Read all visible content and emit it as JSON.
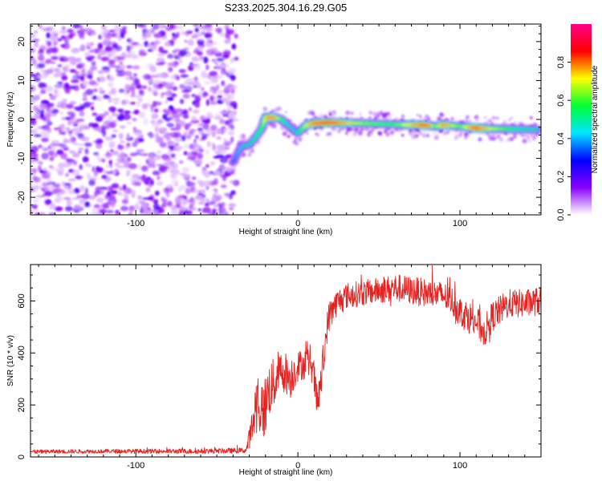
{
  "title": "S233.2025.304.16.29.G05",
  "chart_data": [
    {
      "type": "heatmap",
      "panel": "spectrogram",
      "xlabel": "Height of straight line (km)",
      "ylabel": "Frequency (Hz)",
      "xlim": [
        -165,
        150
      ],
      "ylim": [
        -24.5,
        24.5
      ],
      "xticks": [
        -100,
        0,
        100
      ],
      "xtick_labels": [
        "-100",
        "0",
        "100"
      ],
      "yticks": [
        -20,
        -10,
        0,
        10,
        20
      ],
      "ytick_labels": [
        "-20",
        "-10",
        "0",
        "10",
        "20"
      ],
      "noise_region_x": [
        -165,
        -38
      ],
      "signal_track": {
        "x": [
          -40,
          -35,
          -30,
          -25,
          -22,
          -20,
          -17,
          -14,
          -10,
          -6,
          -2,
          0,
          5,
          10,
          20,
          40,
          60,
          80,
          85,
          90,
          100,
          110,
          120,
          135,
          148
        ],
        "freq": [
          -11,
          -7,
          -6.5,
          -4,
          -2,
          0.5,
          0.5,
          0.5,
          0,
          -1.5,
          -3,
          -3.5,
          -1.5,
          -1,
          -0.8,
          -1,
          -1.3,
          -1.5,
          -1.8,
          -1.4,
          -1.8,
          -2.2,
          -2.4,
          -2.5,
          -2.6
        ],
        "amplitude": [
          0.35,
          0.45,
          0.5,
          0.55,
          0.6,
          0.75,
          0.85,
          0.8,
          0.6,
          0.5,
          0.45,
          0.5,
          0.7,
          0.85,
          0.9,
          0.65,
          0.6,
          0.9,
          0.6,
          0.85,
          0.6,
          0.9,
          0.7,
          0.55,
          0.5
        ]
      },
      "colorbar": {
        "label": "Normalized spectral amplitude",
        "range": [
          0,
          1
        ],
        "ticks": [
          0.0,
          0.2,
          0.4,
          0.6,
          0.8
        ],
        "tick_labels": [
          "0.0",
          "0.2",
          "0.4",
          "0.6",
          "0.8"
        ],
        "colors": [
          "#ffffff",
          "#8a00ff",
          "#0000ff",
          "#00e5ff",
          "#00ff33",
          "#ffff00",
          "#ff0000",
          "#ff0088"
        ]
      }
    },
    {
      "type": "line",
      "panel": "snr",
      "xlabel": "Height of straight line (km)",
      "ylabel": "SNR (10 * v/v)",
      "xlim": [
        -165,
        150
      ],
      "ylim": [
        0,
        740
      ],
      "xticks": [
        -100,
        0,
        100
      ],
      "xtick_labels": [
        "-100",
        "0",
        "100"
      ],
      "yticks": [
        0,
        200,
        400,
        600
      ],
      "ytick_labels": [
        "0",
        "200",
        "400",
        "600"
      ],
      "color": "#e8201e",
      "profile": {
        "x": [
          -165,
          -120,
          -60,
          -32,
          -28,
          -25,
          -22,
          -20,
          -18,
          -15,
          -12,
          -8,
          -5,
          -2,
          0,
          5,
          8,
          10,
          12,
          15,
          18,
          20,
          25,
          30,
          40,
          50,
          60,
          70,
          80,
          90,
          95,
          100,
          110,
          115,
          120,
          130,
          140,
          150
        ],
        "mean": [
          20,
          22,
          22,
          25,
          120,
          230,
          170,
          200,
          260,
          280,
          320,
          330,
          300,
          330,
          350,
          360,
          370,
          300,
          200,
          320,
          500,
          560,
          600,
          620,
          630,
          640,
          650,
          640,
          630,
          620,
          600,
          560,
          520,
          480,
          540,
          590,
          590,
          600
        ],
        "noise": [
          8,
          8,
          10,
          10,
          70,
          130,
          120,
          120,
          110,
          100,
          90,
          80,
          80,
          70,
          60,
          60,
          70,
          70,
          60,
          80,
          60,
          60,
          50,
          50,
          50,
          50,
          55,
          55,
          55,
          55,
          55,
          60,
          65,
          60,
          60,
          55,
          55,
          55
        ]
      }
    }
  ]
}
